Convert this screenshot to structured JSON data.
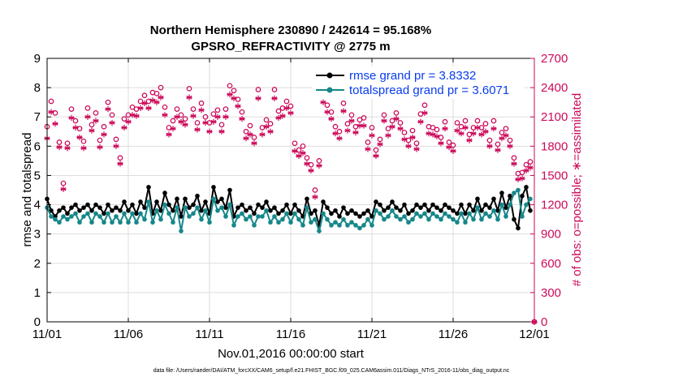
{
  "chart_data": {
    "type": "line",
    "title_line1": "Northern Hemisphere 230890 / 242614 = 95.168%",
    "title_line2": "GPSRO_REFRACTIVITY @ 2775 m",
    "xlabel": "Nov.01,2016 00:00:00 start",
    "ylabel_left": "rmse and totalspread",
    "ylabel_right": "# of obs: o=possible; ∗=assimilated",
    "footnote": "data file: /Users/raeder/DAI/ATM_forcXX/CAM6_setup/f.e21.FHIST_BGC.f09_025.CAM6assim.011/Diags_NTrS_2016-11/obs_diag_output.nc",
    "xlim": [
      0,
      30
    ],
    "ylim_left": [
      0,
      9
    ],
    "ylim_right": [
      0,
      2700
    ],
    "x_ticks": [
      0,
      5,
      10,
      15,
      20,
      25,
      30
    ],
    "x_tick_labels": [
      "11/01",
      "11/06",
      "11/11",
      "11/16",
      "11/21",
      "11/26",
      "12/01"
    ],
    "y_ticks_left": [
      0,
      1,
      2,
      3,
      4,
      5,
      6,
      7,
      8,
      9
    ],
    "y_tick_labels_left": [
      "0",
      "1",
      "2",
      "3",
      "4",
      "5",
      "6",
      "7",
      "8",
      "9"
    ],
    "y_ticks_right": [
      0,
      300,
      600,
      900,
      1200,
      1500,
      1800,
      2100,
      2400,
      2700
    ],
    "y_tick_labels_right": [
      "0",
      "300",
      "600",
      "900",
      "1200",
      "1500",
      "1800",
      "2100",
      "2400",
      "2700"
    ],
    "series": [
      {
        "name": "rmse",
        "legend": "rmse grand pr = 3.8332",
        "axis": "left",
        "marker": "circle",
        "color": "#000000",
        "x": [
          0.0,
          0.25,
          0.5,
          0.75,
          1.0,
          1.25,
          1.5,
          1.75,
          2.0,
          2.25,
          2.5,
          2.75,
          3.0,
          3.25,
          3.5,
          3.75,
          4.0,
          4.25,
          4.5,
          4.75,
          5.0,
          5.25,
          5.5,
          5.75,
          6.0,
          6.25,
          6.5,
          6.75,
          7.0,
          7.25,
          7.5,
          7.75,
          8.0,
          8.25,
          8.5,
          8.75,
          9.0,
          9.25,
          9.5,
          9.75,
          10.0,
          10.25,
          10.5,
          10.75,
          11.0,
          11.25,
          11.5,
          11.75,
          12.0,
          12.25,
          12.5,
          12.75,
          13.0,
          13.25,
          13.5,
          13.75,
          14.0,
          14.25,
          14.5,
          14.75,
          15.0,
          15.25,
          15.5,
          15.75,
          16.0,
          16.25,
          16.5,
          16.75,
          17.0,
          17.25,
          17.5,
          17.75,
          18.0,
          18.25,
          18.5,
          18.75,
          19.0,
          19.25,
          19.5,
          19.75,
          20.0,
          20.25,
          20.5,
          20.75,
          21.0,
          21.25,
          21.5,
          21.75,
          22.0,
          22.25,
          22.5,
          22.75,
          23.0,
          23.25,
          23.5,
          23.75,
          24.0,
          24.25,
          24.5,
          24.75,
          25.0,
          25.25,
          25.5,
          25.75,
          26.0,
          26.25,
          26.5,
          26.75,
          27.0,
          27.25,
          27.5,
          27.75,
          28.0,
          28.25,
          28.5,
          28.75,
          29.0,
          29.25,
          29.5,
          29.75
        ],
        "values": [
          4.2,
          3.8,
          3.6,
          3.8,
          3.9,
          3.7,
          3.9,
          4.0,
          3.8,
          3.9,
          4.0,
          3.8,
          4.0,
          3.9,
          3.7,
          4.0,
          3.8,
          3.9,
          3.8,
          4.1,
          3.8,
          4.0,
          3.7,
          4.1,
          3.9,
          4.6,
          3.7,
          4.1,
          3.8,
          4.4,
          4.0,
          3.8,
          4.2,
          3.6,
          4.2,
          3.9,
          4.0,
          4.3,
          3.8,
          4.1,
          3.7,
          4.6,
          4.1,
          4.2,
          3.9,
          4.5,
          3.6,
          3.9,
          4.0,
          3.8,
          3.9,
          3.7,
          4.0,
          3.9,
          4.1,
          3.8,
          3.9,
          3.7,
          3.8,
          4.0,
          3.7,
          4.0,
          3.8,
          3.6,
          4.2,
          3.7,
          3.8,
          3.3,
          4.1,
          3.9,
          3.7,
          3.8,
          3.6,
          3.9,
          3.7,
          3.8,
          3.7,
          3.6,
          3.7,
          3.8,
          3.6,
          4.1,
          4.0,
          3.8,
          3.9,
          4.1,
          3.9,
          3.8,
          4.0,
          3.7,
          3.8,
          4.0,
          3.9,
          4.0,
          3.8,
          4.0,
          3.9,
          3.8,
          4.0,
          3.9,
          3.8,
          3.7,
          4.0,
          3.7,
          4.0,
          3.8,
          4.2,
          3.8,
          4.0,
          3.9,
          4.2,
          3.8,
          4.4,
          3.9,
          4.3,
          3.5,
          3.2,
          4.3,
          4.6,
          3.8
        ]
      },
      {
        "name": "totalspread",
        "legend": "totalspread grand pr = 3.6071",
        "axis": "left",
        "marker": "circle",
        "color": "#16878a",
        "x": [
          0.0,
          0.25,
          0.5,
          0.75,
          1.0,
          1.25,
          1.5,
          1.75,
          2.0,
          2.25,
          2.5,
          2.75,
          3.0,
          3.25,
          3.5,
          3.75,
          4.0,
          4.25,
          4.5,
          4.75,
          5.0,
          5.25,
          5.5,
          5.75,
          6.0,
          6.25,
          6.5,
          6.75,
          7.0,
          7.25,
          7.5,
          7.75,
          8.0,
          8.25,
          8.5,
          8.75,
          9.0,
          9.25,
          9.5,
          9.75,
          10.0,
          10.25,
          10.5,
          10.75,
          11.0,
          11.25,
          11.5,
          11.75,
          12.0,
          12.25,
          12.5,
          12.75,
          13.0,
          13.25,
          13.5,
          13.75,
          14.0,
          14.25,
          14.5,
          14.75,
          15.0,
          15.25,
          15.5,
          15.75,
          16.0,
          16.25,
          16.5,
          16.75,
          17.0,
          17.25,
          17.5,
          17.75,
          18.0,
          18.25,
          18.5,
          18.75,
          19.0,
          19.25,
          19.5,
          19.75,
          20.0,
          20.25,
          20.5,
          20.75,
          21.0,
          21.25,
          21.5,
          21.75,
          22.0,
          22.25,
          22.5,
          22.75,
          23.0,
          23.25,
          23.5,
          23.75,
          24.0,
          24.25,
          24.5,
          24.75,
          25.0,
          25.25,
          25.5,
          25.75,
          26.0,
          26.25,
          26.5,
          26.75,
          27.0,
          27.25,
          27.5,
          27.75,
          28.0,
          28.25,
          28.5,
          28.75,
          29.0,
          29.25,
          29.5,
          29.75
        ],
        "values": [
          3.9,
          3.6,
          3.5,
          3.4,
          3.6,
          3.5,
          3.6,
          3.7,
          3.4,
          3.6,
          3.7,
          3.4,
          3.7,
          3.6,
          3.4,
          3.7,
          3.4,
          3.6,
          3.4,
          3.7,
          3.4,
          3.7,
          3.4,
          3.7,
          3.5,
          4.1,
          3.4,
          3.8,
          3.5,
          4.0,
          3.7,
          3.4,
          3.9,
          3.1,
          3.9,
          3.6,
          3.7,
          3.9,
          3.5,
          3.8,
          3.4,
          4.2,
          3.8,
          3.9,
          3.6,
          4.0,
          3.3,
          3.6,
          3.7,
          3.5,
          3.6,
          3.3,
          3.6,
          3.6,
          3.8,
          3.4,
          3.6,
          3.4,
          3.5,
          3.7,
          3.4,
          3.7,
          3.5,
          3.3,
          3.9,
          3.4,
          3.5,
          3.1,
          3.7,
          3.5,
          3.3,
          3.4,
          3.3,
          3.5,
          3.3,
          3.4,
          3.3,
          3.2,
          3.3,
          3.5,
          3.3,
          3.8,
          3.7,
          3.5,
          3.6,
          3.8,
          3.6,
          3.5,
          3.6,
          3.4,
          3.5,
          3.7,
          3.6,
          3.7,
          3.5,
          3.7,
          3.6,
          3.5,
          3.7,
          3.6,
          3.5,
          3.4,
          3.7,
          3.4,
          3.7,
          3.5,
          3.9,
          3.5,
          3.7,
          3.6,
          3.8,
          3.5,
          4.0,
          3.6,
          4.0,
          4.4,
          4.5,
          3.6,
          4.0,
          4.2
        ]
      },
      {
        "name": "obs_possible",
        "axis": "right",
        "marker": "o",
        "color": "#cc0a5a",
        "x": [
          0.0,
          0.25,
          0.5,
          0.75,
          1.0,
          1.25,
          1.5,
          1.75,
          2.0,
          2.25,
          2.5,
          2.75,
          3.0,
          3.25,
          3.5,
          3.75,
          4.0,
          4.25,
          4.5,
          4.75,
          5.0,
          5.25,
          5.5,
          5.75,
          6.0,
          6.25,
          6.5,
          6.75,
          7.0,
          7.25,
          7.5,
          7.75,
          8.0,
          8.25,
          8.5,
          8.75,
          9.0,
          9.25,
          9.5,
          9.75,
          10.0,
          10.25,
          10.5,
          10.75,
          11.0,
          11.25,
          11.5,
          11.75,
          12.0,
          12.25,
          12.5,
          12.75,
          13.0,
          13.25,
          13.5,
          13.75,
          14.0,
          14.25,
          14.5,
          14.75,
          15.0,
          15.25,
          15.5,
          15.75,
          16.0,
          16.25,
          16.5,
          16.75,
          17.0,
          17.25,
          17.5,
          17.75,
          18.0,
          18.25,
          18.5,
          18.75,
          19.0,
          19.25,
          19.5,
          19.75,
          20.0,
          20.25,
          20.5,
          20.75,
          21.0,
          21.25,
          21.5,
          21.75,
          22.0,
          22.25,
          22.5,
          22.75,
          23.0,
          23.25,
          23.5,
          23.75,
          24.0,
          24.25,
          24.5,
          24.75,
          25.0,
          25.25,
          25.5,
          25.75,
          26.0,
          26.25,
          26.5,
          26.75,
          27.0,
          27.25,
          27.5,
          27.75,
          28.0,
          28.25,
          28.5,
          28.75,
          29.0,
          29.25,
          29.5,
          29.75,
          30.0
        ],
        "values": [
          2000,
          2260,
          2140,
          1840,
          1420,
          1830,
          2180,
          2060,
          1980,
          1850,
          2190,
          2020,
          2140,
          1860,
          2000,
          2250,
          2120,
          1870,
          1680,
          2080,
          2120,
          2200,
          2180,
          2260,
          2320,
          2260,
          2350,
          2340,
          2400,
          2200,
          1990,
          2060,
          2180,
          2120,
          2080,
          2390,
          2180,
          2040,
          2240,
          2100,
          2040,
          2130,
          2170,
          2020,
          2180,
          2420,
          2370,
          2280,
          2150,
          1950,
          2010,
          1890,
          2380,
          1990,
          2070,
          2030,
          2380,
          2160,
          2190,
          2260,
          2210,
          1830,
          1760,
          1800,
          1680,
          1610,
          1350,
          1650,
          2330,
          2220,
          2150,
          2000,
          1950,
          2240,
          2030,
          2120,
          2000,
          2070,
          2090,
          1840,
          1990,
          1760,
          1870,
          2120,
          1980,
          2060,
          2140,
          2040,
          1940,
          1860,
          1960,
          1830,
          2130,
          2220,
          2000,
          1990,
          1970,
          1890,
          2050,
          1840,
          1810,
          2040,
          2000,
          2060,
          1920,
          1990,
          2060,
          1990,
          2030,
          1860,
          2060,
          1820,
          1940,
          1980,
          1860,
          1680,
          1520,
          1530,
          1610,
          1640,
          0
        ]
      },
      {
        "name": "obs_assimilated",
        "axis": "right",
        "marker": "*",
        "color": "#cc0a5a",
        "x": [
          0.0,
          0.25,
          0.5,
          0.75,
          1.0,
          1.25,
          1.5,
          1.75,
          2.0,
          2.25,
          2.5,
          2.75,
          3.0,
          3.25,
          3.5,
          3.75,
          4.0,
          4.25,
          4.5,
          4.75,
          5.0,
          5.25,
          5.5,
          5.75,
          6.0,
          6.25,
          6.5,
          6.75,
          7.0,
          7.25,
          7.5,
          7.75,
          8.0,
          8.25,
          8.5,
          8.75,
          9.0,
          9.25,
          9.5,
          9.75,
          10.0,
          10.25,
          10.5,
          10.75,
          11.0,
          11.25,
          11.5,
          11.75,
          12.0,
          12.25,
          12.5,
          12.75,
          13.0,
          13.25,
          13.5,
          13.75,
          14.0,
          14.25,
          14.5,
          14.75,
          15.0,
          15.25,
          15.5,
          15.75,
          16.0,
          16.25,
          16.5,
          16.75,
          17.0,
          17.25,
          17.5,
          17.75,
          18.0,
          18.25,
          18.5,
          18.75,
          19.0,
          19.25,
          19.5,
          19.75,
          20.0,
          20.25,
          20.5,
          20.75,
          21.0,
          21.25,
          21.5,
          21.75,
          22.0,
          22.25,
          22.5,
          22.75,
          23.0,
          23.25,
          23.5,
          23.75,
          24.0,
          24.25,
          24.5,
          24.75,
          25.0,
          25.25,
          25.5,
          25.75,
          26.0,
          26.25,
          26.5,
          26.75,
          27.0,
          27.25,
          27.5,
          27.75,
          28.0,
          28.25,
          28.5,
          28.75,
          29.0,
          29.25,
          29.5,
          29.75,
          30.0
        ],
        "values": [
          1880,
          2150,
          2030,
          1790,
          1360,
          1780,
          2090,
          1990,
          1890,
          1780,
          2100,
          1960,
          2060,
          1790,
          1920,
          2180,
          2040,
          1800,
          1620,
          1990,
          2050,
          2120,
          2110,
          2190,
          2240,
          2190,
          2270,
          2250,
          2300,
          2120,
          1920,
          1980,
          2100,
          2050,
          2020,
          2300,
          2110,
          1970,
          2170,
          2040,
          1950,
          2050,
          2100,
          1950,
          2100,
          2330,
          2290,
          2210,
          2080,
          1880,
          1920,
          1830,
          2290,
          1920,
          2000,
          1950,
          2290,
          2090,
          2110,
          2190,
          2140,
          1750,
          1700,
          1730,
          1620,
          1550,
          1280,
          1600,
          2250,
          2150,
          2080,
          1930,
          1880,
          2160,
          1960,
          2060,
          1940,
          2010,
          2010,
          1770,
          1910,
          1700,
          1820,
          2060,
          1910,
          2000,
          2080,
          1980,
          1870,
          1800,
          1890,
          1770,
          2050,
          2140,
          1930,
          1920,
          1900,
          1830,
          1980,
          1790,
          1750,
          1960,
          1930,
          1990,
          1860,
          1930,
          1990,
          1920,
          1950,
          1800,
          1980,
          1760,
          1880,
          1910,
          1800,
          1620,
          1460,
          1470,
          1550,
          1580,
          0
        ]
      }
    ]
  }
}
